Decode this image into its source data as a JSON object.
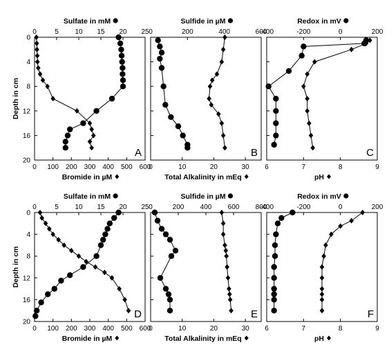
{
  "shared": {
    "ylabel": "Depth in cm",
    "ylim": [
      20,
      0
    ],
    "yticks": [
      0,
      4,
      8,
      12,
      16,
      20
    ]
  },
  "chart_data": [
    {
      "type": "line",
      "panel": "A",
      "top_axis": {
        "label": "Sulfate in mM",
        "range": [
          0,
          25
        ],
        "ticks": [
          0,
          5,
          10,
          15,
          20,
          25
        ]
      },
      "bottom_axis": {
        "label": "Bromide in µM",
        "range": [
          0,
          600
        ],
        "ticks": [
          0,
          100,
          200,
          300,
          400,
          500,
          600
        ]
      },
      "series": [
        {
          "marker": "circle",
          "axis": "top",
          "x": [
            19,
            19.4,
            19.6,
            19.7,
            19.8,
            19.9,
            19.9,
            20,
            20,
            17.5,
            14,
            11,
            8,
            7.5,
            7,
            7
          ],
          "y": [
            0,
            1,
            2,
            3,
            4,
            5,
            6,
            7,
            8,
            10,
            12,
            14,
            15,
            16,
            17,
            18
          ]
        },
        {
          "marker": "diamond",
          "axis": "bottom",
          "x": [
            10,
            12,
            13,
            15,
            16,
            20,
            30,
            45,
            70,
            100,
            230,
            300,
            310,
            320,
            300,
            310
          ],
          "y": [
            0,
            1,
            2,
            3,
            4,
            5,
            6,
            7,
            8,
            10,
            12,
            14,
            15,
            16,
            17,
            18
          ]
        }
      ]
    },
    {
      "type": "line",
      "panel": "B",
      "top_axis": {
        "label": "Sulfide in µM",
        "range": [
          0,
          600
        ],
        "ticks": [
          0,
          200,
          400,
          600
        ]
      },
      "bottom_axis": {
        "label": "Total Alkalinity in mEq",
        "range": [
          0,
          35
        ],
        "ticks": [
          0,
          10,
          20,
          30
        ]
      },
      "series": [
        {
          "marker": "circle",
          "axis": "top",
          "x": [
            40,
            50,
            60,
            50,
            60,
            70,
            80,
            110,
            150,
            175,
            200,
            200
          ],
          "y": [
            0.5,
            1.5,
            2.5,
            3.5,
            5,
            8,
            11,
            13,
            14.5,
            16,
            17.5,
            18
          ]
        },
        {
          "marker": "diamond",
          "axis": "bottom",
          "x": [
            23.5,
            23,
            22.5,
            21,
            19.5,
            18.8,
            18.5,
            19.2,
            21.5,
            22.5,
            23,
            23.5
          ],
          "y": [
            0,
            2,
            4,
            6,
            7,
            8,
            10,
            11,
            12.5,
            14,
            16,
            18
          ]
        }
      ]
    },
    {
      "type": "line",
      "panel": "C",
      "top_axis": {
        "label": "Redox in mV",
        "range": [
          -400,
          200
        ],
        "ticks": [
          -400,
          -200,
          0,
          200
        ]
      },
      "bottom_axis": {
        "label": "pH",
        "range": [
          6,
          9
        ],
        "ticks": [
          6,
          7,
          8,
          9
        ]
      },
      "series": [
        {
          "marker": "circle",
          "axis": "top",
          "x": [
            140,
            130,
            -200,
            -210,
            -280,
            -390,
            -350,
            -350,
            -350,
            -350,
            -360
          ],
          "y": [
            0.5,
            1,
            1.5,
            3,
            5.5,
            8,
            10,
            12,
            14,
            16,
            17.5
          ]
        },
        {
          "marker": "diamond",
          "axis": "bottom",
          "x": [
            8.8,
            8.7,
            8.3,
            7.3,
            7.1,
            7.0,
            7.1,
            7.1,
            7.15,
            7.2,
            7.25
          ],
          "y": [
            0.5,
            1,
            2,
            4,
            6,
            8,
            10,
            12,
            14,
            16,
            18
          ]
        }
      ]
    },
    {
      "type": "line",
      "panel": "D",
      "top_axis": {
        "label": "Sulfate in mM",
        "range": [
          0,
          25
        ],
        "ticks": [
          0,
          5,
          10,
          15,
          20,
          25
        ]
      },
      "bottom_axis": {
        "label": "Bromide in µM",
        "range": [
          0,
          600
        ],
        "ticks": [
          0,
          100,
          200,
          300,
          400,
          500,
          600
        ]
      },
      "series": [
        {
          "marker": "circle",
          "axis": "top",
          "x": [
            19,
            18,
            17,
            16.5,
            16,
            15.5,
            15,
            14,
            11,
            8,
            6,
            4.5,
            3,
            1.5,
            0.5,
            0.2
          ],
          "y": [
            0,
            1,
            2,
            3,
            4,
            5,
            6,
            8,
            10,
            11.5,
            12.5,
            14,
            15,
            16.5,
            18,
            19
          ]
        },
        {
          "marker": "diamond",
          "axis": "bottom",
          "x": [
            30,
            40,
            60,
            80,
            100,
            130,
            160,
            200,
            240,
            280,
            330,
            380,
            420,
            460,
            490,
            510
          ],
          "y": [
            0,
            1,
            2,
            3,
            4,
            5,
            6,
            7,
            8,
            9,
            10,
            11,
            12,
            14,
            16,
            18
          ]
        }
      ]
    },
    {
      "type": "line",
      "panel": "E",
      "top_axis": {
        "label": "Sulfide in µM",
        "range": [
          0,
          800
        ],
        "ticks": [
          0,
          200,
          400,
          600,
          800
        ]
      },
      "bottom_axis": {
        "label": "Total Alkalinity in mEq",
        "range": [
          0,
          35
        ],
        "ticks": [
          0,
          10,
          20,
          30
        ]
      },
      "series": [
        {
          "marker": "circle",
          "axis": "top",
          "x": [
            30,
            50,
            80,
            110,
            140,
            180,
            150,
            70,
            110,
            130,
            140,
            140
          ],
          "y": [
            0,
            1.5,
            3,
            4,
            5,
            7,
            8,
            12,
            14,
            15,
            16,
            18
          ]
        },
        {
          "marker": "diamond",
          "axis": "bottom",
          "x": [
            22.5,
            23,
            23,
            23.5,
            23.8,
            24,
            24.2,
            24.5,
            24.8,
            25,
            25.2,
            25.5
          ],
          "y": [
            0,
            2,
            4,
            6,
            7,
            8,
            10,
            12,
            14,
            15,
            16,
            18
          ]
        }
      ]
    },
    {
      "type": "line",
      "panel": "F",
      "top_axis": {
        "label": "Redox in mV",
        "range": [
          -400,
          200
        ],
        "ticks": [
          -400,
          -200,
          0,
          200
        ]
      },
      "bottom_axis": {
        "label": "pH",
        "range": [
          6,
          9
        ],
        "ticks": [
          6,
          7,
          8,
          9
        ]
      },
      "series": [
        {
          "marker": "circle",
          "axis": "top",
          "x": [
            -260,
            -320,
            -340,
            -350,
            -355,
            -355,
            -360,
            -360,
            -360,
            -360,
            -360,
            -360
          ],
          "y": [
            0,
            1,
            2,
            4,
            6,
            8,
            10,
            12,
            14,
            15,
            16,
            18
          ]
        },
        {
          "marker": "diamond",
          "axis": "bottom",
          "x": [
            8.6,
            8.3,
            8.0,
            7.75,
            7.6,
            7.55,
            7.5,
            7.5,
            7.5,
            7.5,
            7.5,
            7.5
          ],
          "y": [
            0,
            1.5,
            2.5,
            4,
            6,
            8,
            10,
            12,
            14,
            15,
            16,
            18
          ]
        }
      ]
    }
  ]
}
